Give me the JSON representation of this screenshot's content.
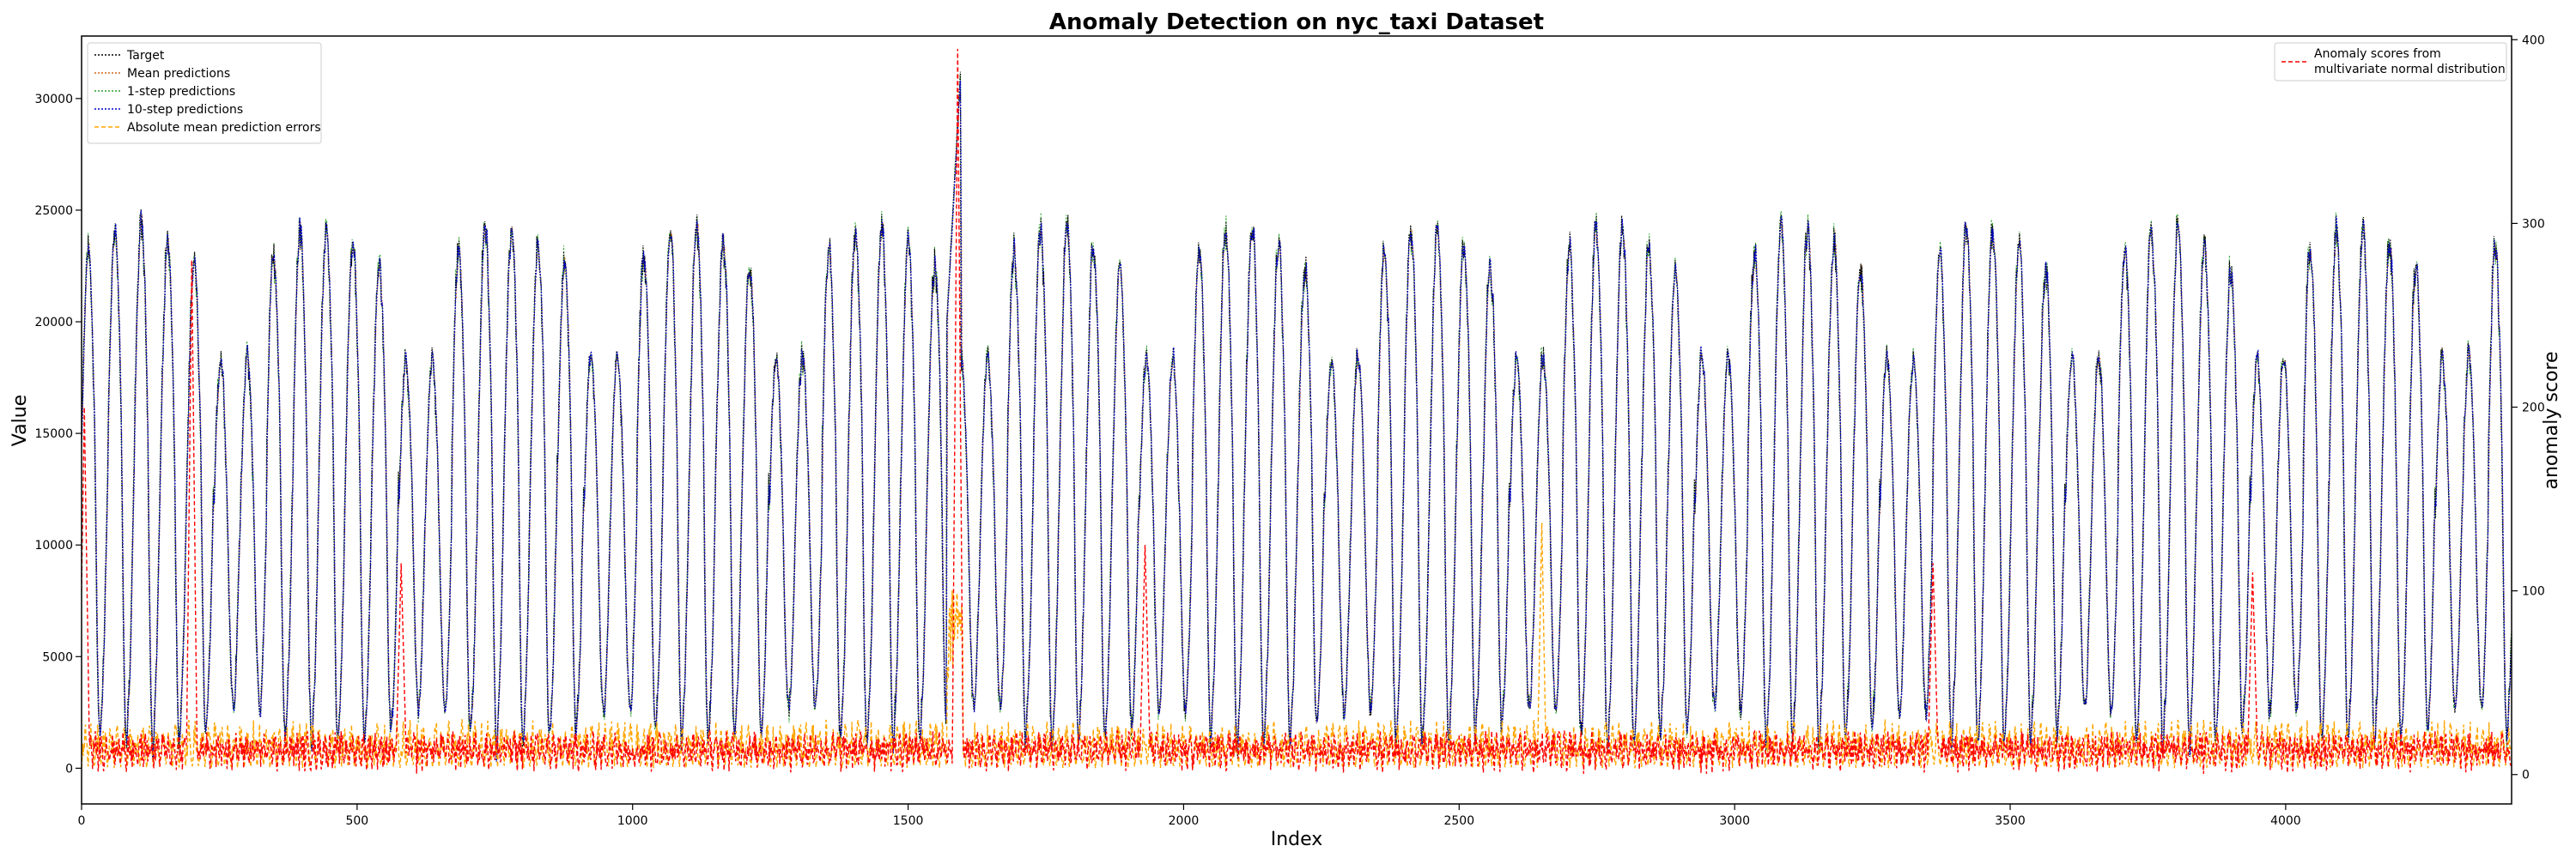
{
  "chart_data": {
    "type": "line",
    "title": "Anomaly Detection on nyc_taxi Dataset",
    "xlabel": "Index",
    "ylabel": "Value",
    "y2label": "anomaly score",
    "xlim": [
      0,
      4410
    ],
    "ylim": [
      -1600,
      32800
    ],
    "y2lim": [
      -16,
      402
    ],
    "xticks": [
      0,
      500,
      1000,
      1500,
      2000,
      2500,
      3000,
      3500,
      4000
    ],
    "yticks": [
      0,
      5000,
      10000,
      15000,
      20000,
      25000,
      30000
    ],
    "y2ticks": [
      0,
      100,
      200,
      300,
      400
    ],
    "grid": false,
    "legend_left_placement": "upper-left",
    "legend_right_placement": "upper-right",
    "series": [
      {
        "name": "Target",
        "color": "#000000",
        "style": "dotted-markers",
        "axis": "left",
        "period": 48,
        "base_low": 2400,
        "base_high": 24000,
        "anomaly_at": 1590,
        "anomaly_peak": 31200
      },
      {
        "name": "Mean predictions",
        "color": "#d2691e",
        "style": "dotted",
        "axis": "left",
        "period": 48
      },
      {
        "name": "1-step predictions",
        "color": "#2ca02c",
        "style": "dotted",
        "axis": "left",
        "period": 48
      },
      {
        "name": "10-step predictions",
        "color": "#0000cc",
        "style": "dotted-markers",
        "axis": "left",
        "period": 48
      },
      {
        "name": "Absolute mean prediction errors",
        "color": "#ffa500",
        "style": "dashed",
        "axis": "left",
        "typical_max": 4000,
        "peak_at": 2650,
        "peak_value": 11000
      }
    ],
    "series_right": [
      {
        "name": "Anomaly scores from\nmultivariate normal distribution",
        "name_lines": [
          "Anomaly scores from",
          "multivariate normal distribution"
        ],
        "color": "#ff0000",
        "style": "dashed",
        "axis": "right",
        "peaks": [
          {
            "x": 5,
            "y": 200
          },
          {
            "x": 200,
            "y": 280
          },
          {
            "x": 580,
            "y": 115
          },
          {
            "x": 1590,
            "y": 395
          },
          {
            "x": 1930,
            "y": 125
          },
          {
            "x": 3360,
            "y": 115
          },
          {
            "x": 3940,
            "y": 110
          }
        ]
      }
    ]
  }
}
